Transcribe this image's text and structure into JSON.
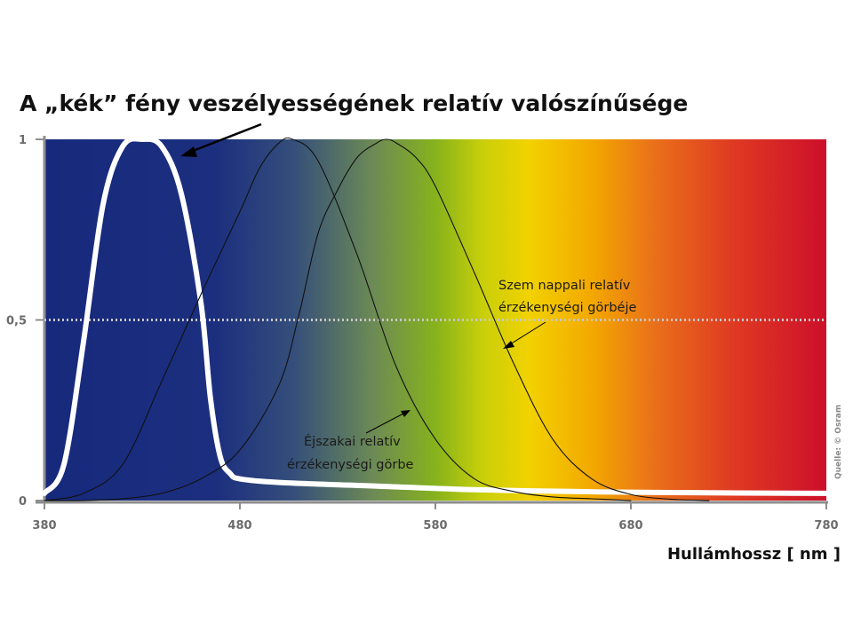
{
  "chart_data": {
    "type": "line",
    "title": "A „kék” fény veszélyességének relatív valószínűsége",
    "xlabel": "Hullámhossz  [ nm ]",
    "ylabel": "",
    "xlim": [
      380,
      780
    ],
    "ylim": [
      0,
      1
    ],
    "x_ticks": [
      "380",
      "480",
      "580",
      "680",
      "780"
    ],
    "y_ticks": [
      "0",
      "0,5",
      "1"
    ],
    "reference_line": {
      "y": 0.5,
      "style": "dotted"
    },
    "background": "visible light spectrum gradient (blue to red)",
    "credit": "Quelle: © Osram",
    "series": [
      {
        "key": "blue_hazard",
        "color": "#ffffff",
        "x": [
          380,
          390,
          400,
          410,
          420,
          430,
          440,
          450,
          460,
          465,
          470,
          475,
          480,
          500,
          550,
          600,
          650,
          700,
          780
        ],
        "values": [
          0.02,
          0.1,
          0.44,
          0.82,
          0.98,
          1.0,
          0.98,
          0.85,
          0.55,
          0.28,
          0.12,
          0.075,
          0.06,
          0.05,
          0.04,
          0.03,
          0.025,
          0.022,
          0.02
        ]
      },
      {
        "key": "scotopic",
        "color": "#111111",
        "x": [
          380,
          400,
          420,
          440,
          460,
          480,
          490,
          500,
          507,
          520,
          540,
          560,
          580,
          600,
          620,
          640,
          660,
          680
        ],
        "values": [
          0.0,
          0.02,
          0.1,
          0.33,
          0.57,
          0.8,
          0.92,
          0.99,
          1.0,
          0.94,
          0.68,
          0.37,
          0.17,
          0.06,
          0.025,
          0.01,
          0.005,
          0.0
        ]
      },
      {
        "key": "photopic",
        "color": "#111111",
        "x": [
          380,
          400,
          420,
          440,
          460,
          480,
          500,
          510,
          520,
          530,
          540,
          550,
          555,
          560,
          570,
          580,
          600,
          620,
          640,
          660,
          680,
          700,
          720
        ],
        "values": [
          0.0,
          0.0,
          0.005,
          0.02,
          0.06,
          0.14,
          0.32,
          0.51,
          0.74,
          0.86,
          0.95,
          0.99,
          1.0,
          0.99,
          0.95,
          0.87,
          0.63,
          0.38,
          0.17,
          0.06,
          0.017,
          0.004,
          0.0
        ]
      }
    ],
    "annotations": {
      "day_line1": "Szem  nappali  relatív",
      "day_line2": "érzékenységi  görbéje",
      "night_line1": "Éjszakai relatív",
      "night_line2": "érzékenységi  görbe"
    }
  }
}
